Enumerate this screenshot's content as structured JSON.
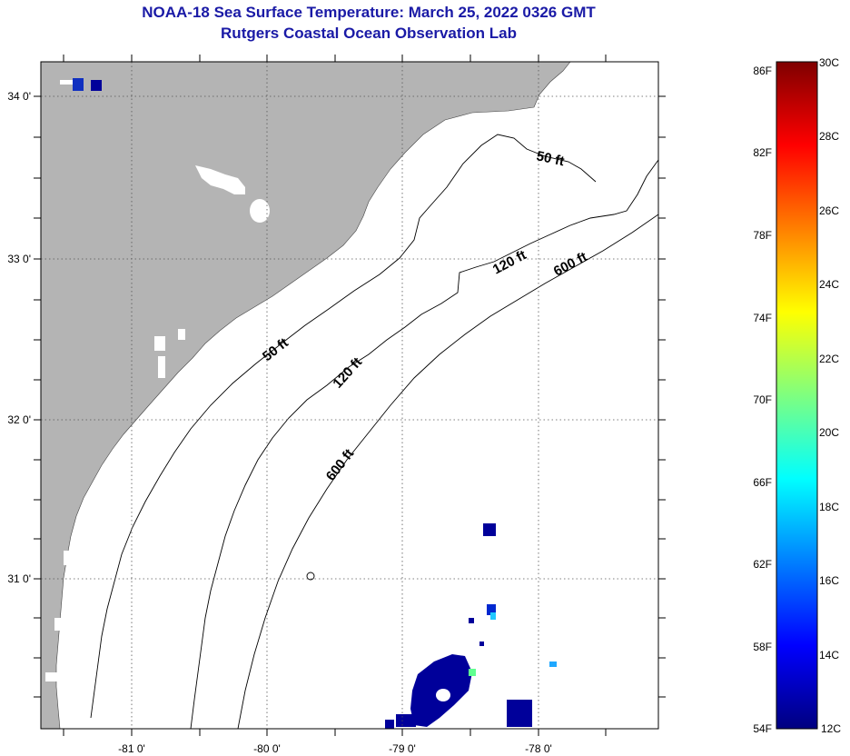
{
  "title": {
    "line1": "NOAA-18 Sea Surface Temperature:  March 25, 2022 0326 GMT",
    "line2": "Rutgers Coastal Ocean Observation Lab"
  },
  "map": {
    "lon_labels": [
      "-81 0'",
      "-80 0'",
      "-79 0'",
      "-78 0'"
    ],
    "lat_labels": [
      "34 0'",
      "33 0'",
      "32 0'",
      "31 0'"
    ],
    "contour_labels": [
      "50 ft",
      "120 ft",
      "600 ft",
      "50 ft",
      "120 ft",
      "600 ft"
    ],
    "colors": {
      "land": "#b4b4b4",
      "ocean": "#ffffff",
      "no_data": "#ffffff"
    }
  },
  "colorbar": {
    "fahrenheit_labels": [
      "86F",
      "82F",
      "78F",
      "74F",
      "70F",
      "66F",
      "62F",
      "58F",
      "54F"
    ],
    "celsius_labels": [
      "30C",
      "28C",
      "26C",
      "24C",
      "22C",
      "20C",
      "18C",
      "16C",
      "14C",
      "12C"
    ],
    "colors": [
      "#00007f",
      "#0000ff",
      "#007fff",
      "#00ffff",
      "#7fff7f",
      "#ffff00",
      "#ff7f00",
      "#ff0000",
      "#7f0000"
    ]
  }
}
